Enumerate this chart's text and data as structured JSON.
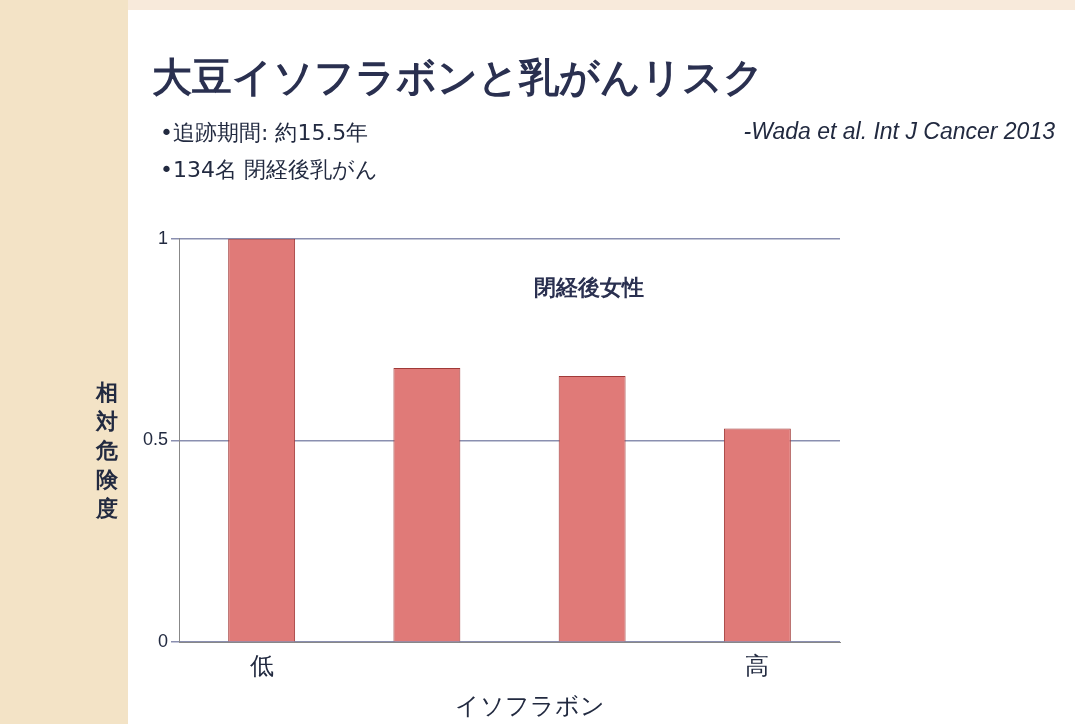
{
  "chart_data": {
    "type": "bar",
    "title": "大豆イソフラボンと乳がんリスク",
    "categories": [
      "低",
      null,
      null,
      "高"
    ],
    "values": [
      1.0,
      0.68,
      0.66,
      0.53
    ],
    "color": "#e07a78",
    "ylabel": "相対危険度",
    "xlabel": "イソフラボン",
    "ylim": [
      0,
      1
    ],
    "yticks": [
      0,
      0.5,
      1
    ],
    "grid": "y",
    "legend": false,
    "annotations": [
      "•追跡期間: 約15.5年",
      "•134名 閉経後乳がん",
      "-Wada et al. Int J Cancer 2013",
      "閉経後女性"
    ]
  }
}
